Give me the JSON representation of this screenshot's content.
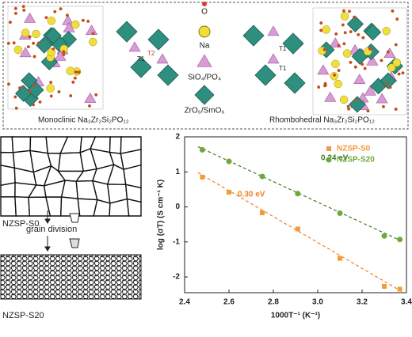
{
  "top_panel": {
    "legend": [
      "O",
      "Na",
      "SiO₄/PO₄",
      "ZrO₆/SmO₆"
    ],
    "captions": [
      "Monoclinic Na₃Zr₂Si₂PO₁₂",
      "Rhombohedral Na₃Zr₂Si₂PO₁₂"
    ],
    "site_labels": [
      "T1",
      "T2",
      "T1",
      "T1"
    ]
  },
  "grain_panel": {
    "labels": [
      "NZSP-S0",
      "grain division",
      "NZSP-S20"
    ]
  },
  "chart_data": {
    "type": "scatter",
    "xlabel": "1000T⁻¹ (K⁻¹)",
    "ylabel": "log (σT) (S cm⁻¹ K)",
    "x": [
      2.48,
      2.6,
      2.75,
      2.91,
      3.1,
      3.3,
      3.37
    ],
    "series": [
      {
        "name": "NZSP-S0",
        "color": "#f39a3a",
        "marker": "square",
        "values": [
          0.85,
          0.42,
          -0.17,
          -0.63,
          -1.47,
          -2.27,
          -2.35
        ],
        "fit_x": [
          2.46,
          3.38
        ],
        "fit_y": [
          0.98,
          -2.42
        ],
        "annotation": "0.30 eV"
      },
      {
        "name": "NZSP-S20",
        "color": "#6fa83c",
        "marker": "circle",
        "values": [
          1.63,
          1.3,
          0.87,
          0.38,
          -0.18,
          -0.83,
          -0.93
        ],
        "fit_x": [
          2.46,
          3.38
        ],
        "fit_y": [
          1.72,
          -0.98
        ],
        "annotation": "0.24 eV"
      }
    ],
    "xlim": [
      2.4,
      3.4
    ],
    "xticks": [
      2.4,
      2.6,
      2.8,
      {
        "value": 3,
        "label": "3.0"
      },
      3.2,
      3.4
    ],
    "ylim": [
      -2.45,
      2
    ],
    "yticks": [
      -2,
      -1,
      0,
      1,
      2
    ],
    "legend": "upper right"
  }
}
